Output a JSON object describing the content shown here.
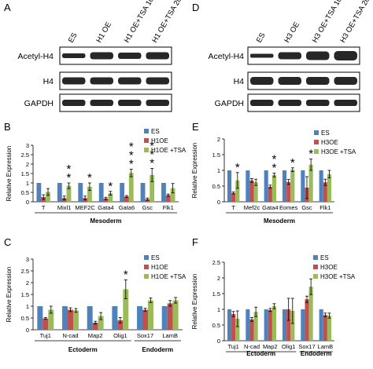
{
  "panels": {
    "A": {
      "letter": "A",
      "lanes": [
        "ES",
        "H1 OE",
        "H1 OE+TSA 10",
        "H1 OE+TSA 20"
      ],
      "rows": [
        "Acetyl-H4",
        "H4",
        "GAPDH"
      ]
    },
    "D": {
      "letter": "D",
      "lanes": [
        "ES",
        "H3 OE",
        "H3 OE+TSA 10",
        "H3 OE+TSA 20"
      ],
      "rows": [
        "Acetyl-H4",
        "H4",
        "GAPDH"
      ]
    }
  },
  "colors": {
    "ES": "#4f81bd",
    "OE": "#c0504d",
    "TSA": "#9bbb59",
    "err": "#000000"
  },
  "chart_data": [
    {
      "panel": "B",
      "type": "bar",
      "ylabel": "Relative Expression",
      "ylim": [
        0,
        3
      ],
      "yticks": [
        "0",
        "0.5",
        "1",
        "1.5",
        "2",
        "2.5",
        "3"
      ],
      "categories": [
        "T",
        "Mixl1",
        "MEF2C",
        "Gata4",
        "Gata6",
        "Gsc",
        "Flk1"
      ],
      "groups": [
        {
          "label": "Mesoderm",
          "from": 0,
          "to": 6
        }
      ],
      "legend": [
        "ES",
        "H1OE",
        "H1OE +TSA"
      ],
      "series": [
        {
          "name": "ES",
          "values": [
            1,
            1,
            1,
            1,
            1,
            1,
            1
          ],
          "err": [
            0,
            0,
            0,
            0,
            0,
            0,
            0
          ]
        },
        {
          "name": "H1OE",
          "values": [
            0.25,
            0.2,
            0.2,
            0.18,
            0.28,
            0.14,
            0.35
          ],
          "err": [
            0.12,
            0.1,
            0.1,
            0.06,
            0.05,
            0.06,
            0.06
          ]
        },
        {
          "name": "H1OE +TSA",
          "values": [
            0.52,
            0.85,
            0.8,
            0.45,
            1.53,
            1.42,
            0.72
          ],
          "err": [
            0.18,
            0.15,
            0.2,
            0.1,
            0.2,
            0.35,
            0.25
          ]
        }
      ],
      "stars": [
        0,
        2,
        1,
        1,
        3,
        3,
        0
      ]
    },
    {
      "panel": "E",
      "type": "bar",
      "ylabel": "Relative Expression",
      "ylim": [
        0,
        2
      ],
      "yticks": [
        "0",
        "0.5",
        "1",
        "1.5",
        "2"
      ],
      "categories": [
        "T",
        "Mef2c",
        "Gata4",
        "Eomes",
        "Gsc",
        "Flk1"
      ],
      "groups": [
        {
          "label": "Mesoderm",
          "from": 0,
          "to": 5
        }
      ],
      "legend": [
        "ES",
        "H3OE",
        "H3OE +TSA"
      ],
      "series": [
        {
          "name": "ES",
          "values": [
            1,
            1,
            1,
            1,
            1,
            1
          ],
          "err": [
            0,
            0,
            0,
            0,
            0,
            0
          ]
        },
        {
          "name": "H3OE",
          "values": [
            0.28,
            0.68,
            0.48,
            0.63,
            0.45,
            0.62
          ],
          "err": [
            0.03,
            0.06,
            0.05,
            0.08,
            0.35,
            0.1
          ]
        },
        {
          "name": "H3OE +TSA",
          "values": [
            0.68,
            0.62,
            0.85,
            1.02,
            1.18,
            0.88
          ],
          "err": [
            0.25,
            0.1,
            0.06,
            0.06,
            0.18,
            0.12
          ]
        }
      ],
      "stars": [
        1,
        0,
        2,
        1,
        1,
        0
      ]
    },
    {
      "panel": "C",
      "type": "bar",
      "ylabel": "Relative Expression",
      "ylim": [
        0,
        3
      ],
      "yticks": [
        "0",
        "0.5",
        "1",
        "1.5",
        "2",
        "2.5",
        "3"
      ],
      "categories": [
        "Tuj1",
        "N-cad",
        "Map2",
        "Olig1",
        "Sox17",
        "LamB"
      ],
      "groups": [
        {
          "label": "Ectoderm",
          "from": 0,
          "to": 3
        },
        {
          "label": "Endoderm",
          "from": 4,
          "to": 5
        }
      ],
      "legend": [
        "ES",
        "H1OE",
        "H1OE +TSA"
      ],
      "series": [
        {
          "name": "ES",
          "values": [
            1,
            1,
            1,
            1,
            1,
            1
          ],
          "err": [
            0,
            0,
            0,
            0,
            0,
            0
          ]
        },
        {
          "name": "H1OE",
          "values": [
            0.48,
            0.85,
            0.3,
            0.4,
            0.85,
            1.12
          ],
          "err": [
            0.04,
            0.08,
            0.06,
            0.12,
            0.06,
            0.12
          ]
        },
        {
          "name": "H1OE +TSA",
          "values": [
            0.85,
            0.82,
            0.58,
            1.72,
            1.25,
            1.25
          ],
          "err": [
            0.15,
            0.08,
            0.15,
            0.4,
            0.1,
            0.12
          ]
        }
      ],
      "stars": [
        0,
        0,
        0,
        1,
        0,
        0
      ]
    },
    {
      "panel": "F",
      "type": "bar",
      "ylabel": "Relative Expression",
      "ylim": [
        0,
        2.5
      ],
      "yticks": [
        "0",
        "0.5",
        "1",
        "1.5",
        "2",
        "2.5"
      ],
      "categories": [
        "Tuj1",
        "N-cad",
        "Map2",
        "Olig1",
        "Sox17",
        "LamB"
      ],
      "groups": [
        {
          "label": "Ectoderm",
          "from": 0,
          "to": 3
        },
        {
          "label": "Endoderm",
          "from": 4,
          "to": 5
        }
      ],
      "legend": [
        "ES",
        "H3OE",
        "H3OE +TSA"
      ],
      "series": [
        {
          "name": "ES",
          "values": [
            1,
            1,
            1,
            1,
            1,
            1
          ],
          "err": [
            0,
            0,
            0,
            0,
            0,
            0
          ]
        },
        {
          "name": "H3OE",
          "values": [
            0.85,
            0.68,
            0.98,
            1.0,
            1.32,
            0.82
          ],
          "err": [
            0.08,
            0.06,
            0.05,
            0.35,
            0.1,
            0.06
          ]
        },
        {
          "name": "H3OE +TSA",
          "values": [
            0.7,
            0.92,
            1.1,
            0.95,
            1.72,
            0.8
          ],
          "err": [
            0.25,
            0.15,
            0.08,
            0.4,
            0.25,
            0.08
          ]
        }
      ],
      "stars": [
        0,
        0,
        0,
        0,
        0,
        0
      ]
    }
  ]
}
